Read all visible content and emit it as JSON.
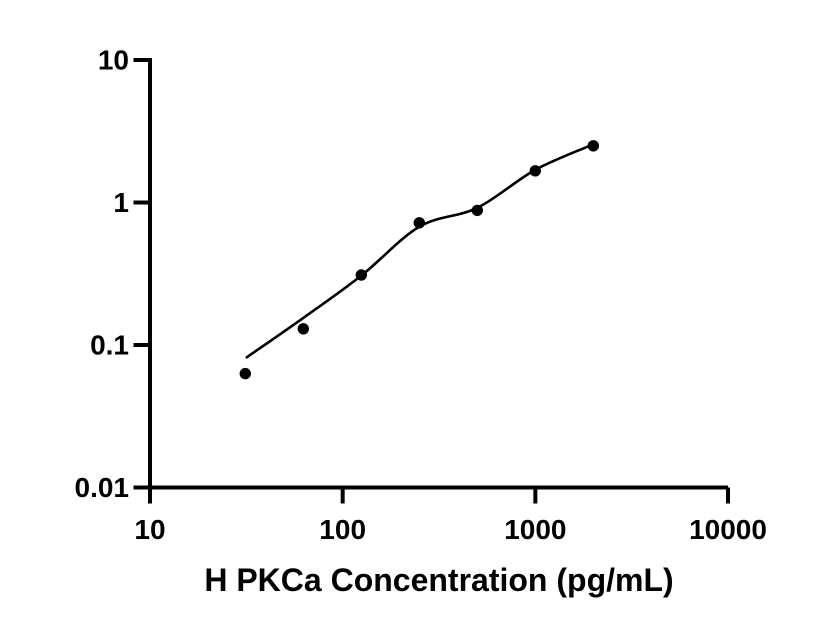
{
  "figure": {
    "background": "#ffffff",
    "foreground": "#000000"
  },
  "chart_data": {
    "type": "scatter",
    "title": "",
    "xlabel": "H PKCa Concentration (pg/mL)",
    "ylabel": "",
    "x_scale": "log10",
    "y_scale": "log10",
    "xlim": [
      10,
      10000
    ],
    "ylim": [
      0.01,
      10
    ],
    "grid": false,
    "legend": false,
    "x_ticks": [
      {
        "value": 10,
        "label": "10"
      },
      {
        "value": 100,
        "label": "100"
      },
      {
        "value": 1000,
        "label": "1000"
      },
      {
        "value": 10000,
        "label": "10000"
      }
    ],
    "y_ticks": [
      {
        "value": 10,
        "label": "10"
      },
      {
        "value": 1,
        "label": "1"
      },
      {
        "value": 0.1,
        "label": "0.1"
      },
      {
        "value": 0.01,
        "label": "0.01"
      }
    ],
    "series": [
      {
        "name": "standard-points",
        "kind": "scatter",
        "marker": "filled-circle",
        "color": "#000000",
        "x": [
          31.25,
          62.5,
          125,
          250,
          500,
          1000,
          2000
        ],
        "y": [
          0.063,
          0.13,
          0.31,
          0.72,
          0.88,
          1.67,
          2.5
        ]
      },
      {
        "name": "fit-curve",
        "kind": "line",
        "color": "#000000",
        "points": [
          [
            31.8,
            0.082
          ],
          [
            62.5,
            0.155
          ],
          [
            125,
            0.307
          ],
          [
            250,
            0.676
          ],
          [
            500,
            0.918
          ],
          [
            1000,
            1.695
          ],
          [
            2000,
            2.56
          ]
        ]
      }
    ]
  }
}
